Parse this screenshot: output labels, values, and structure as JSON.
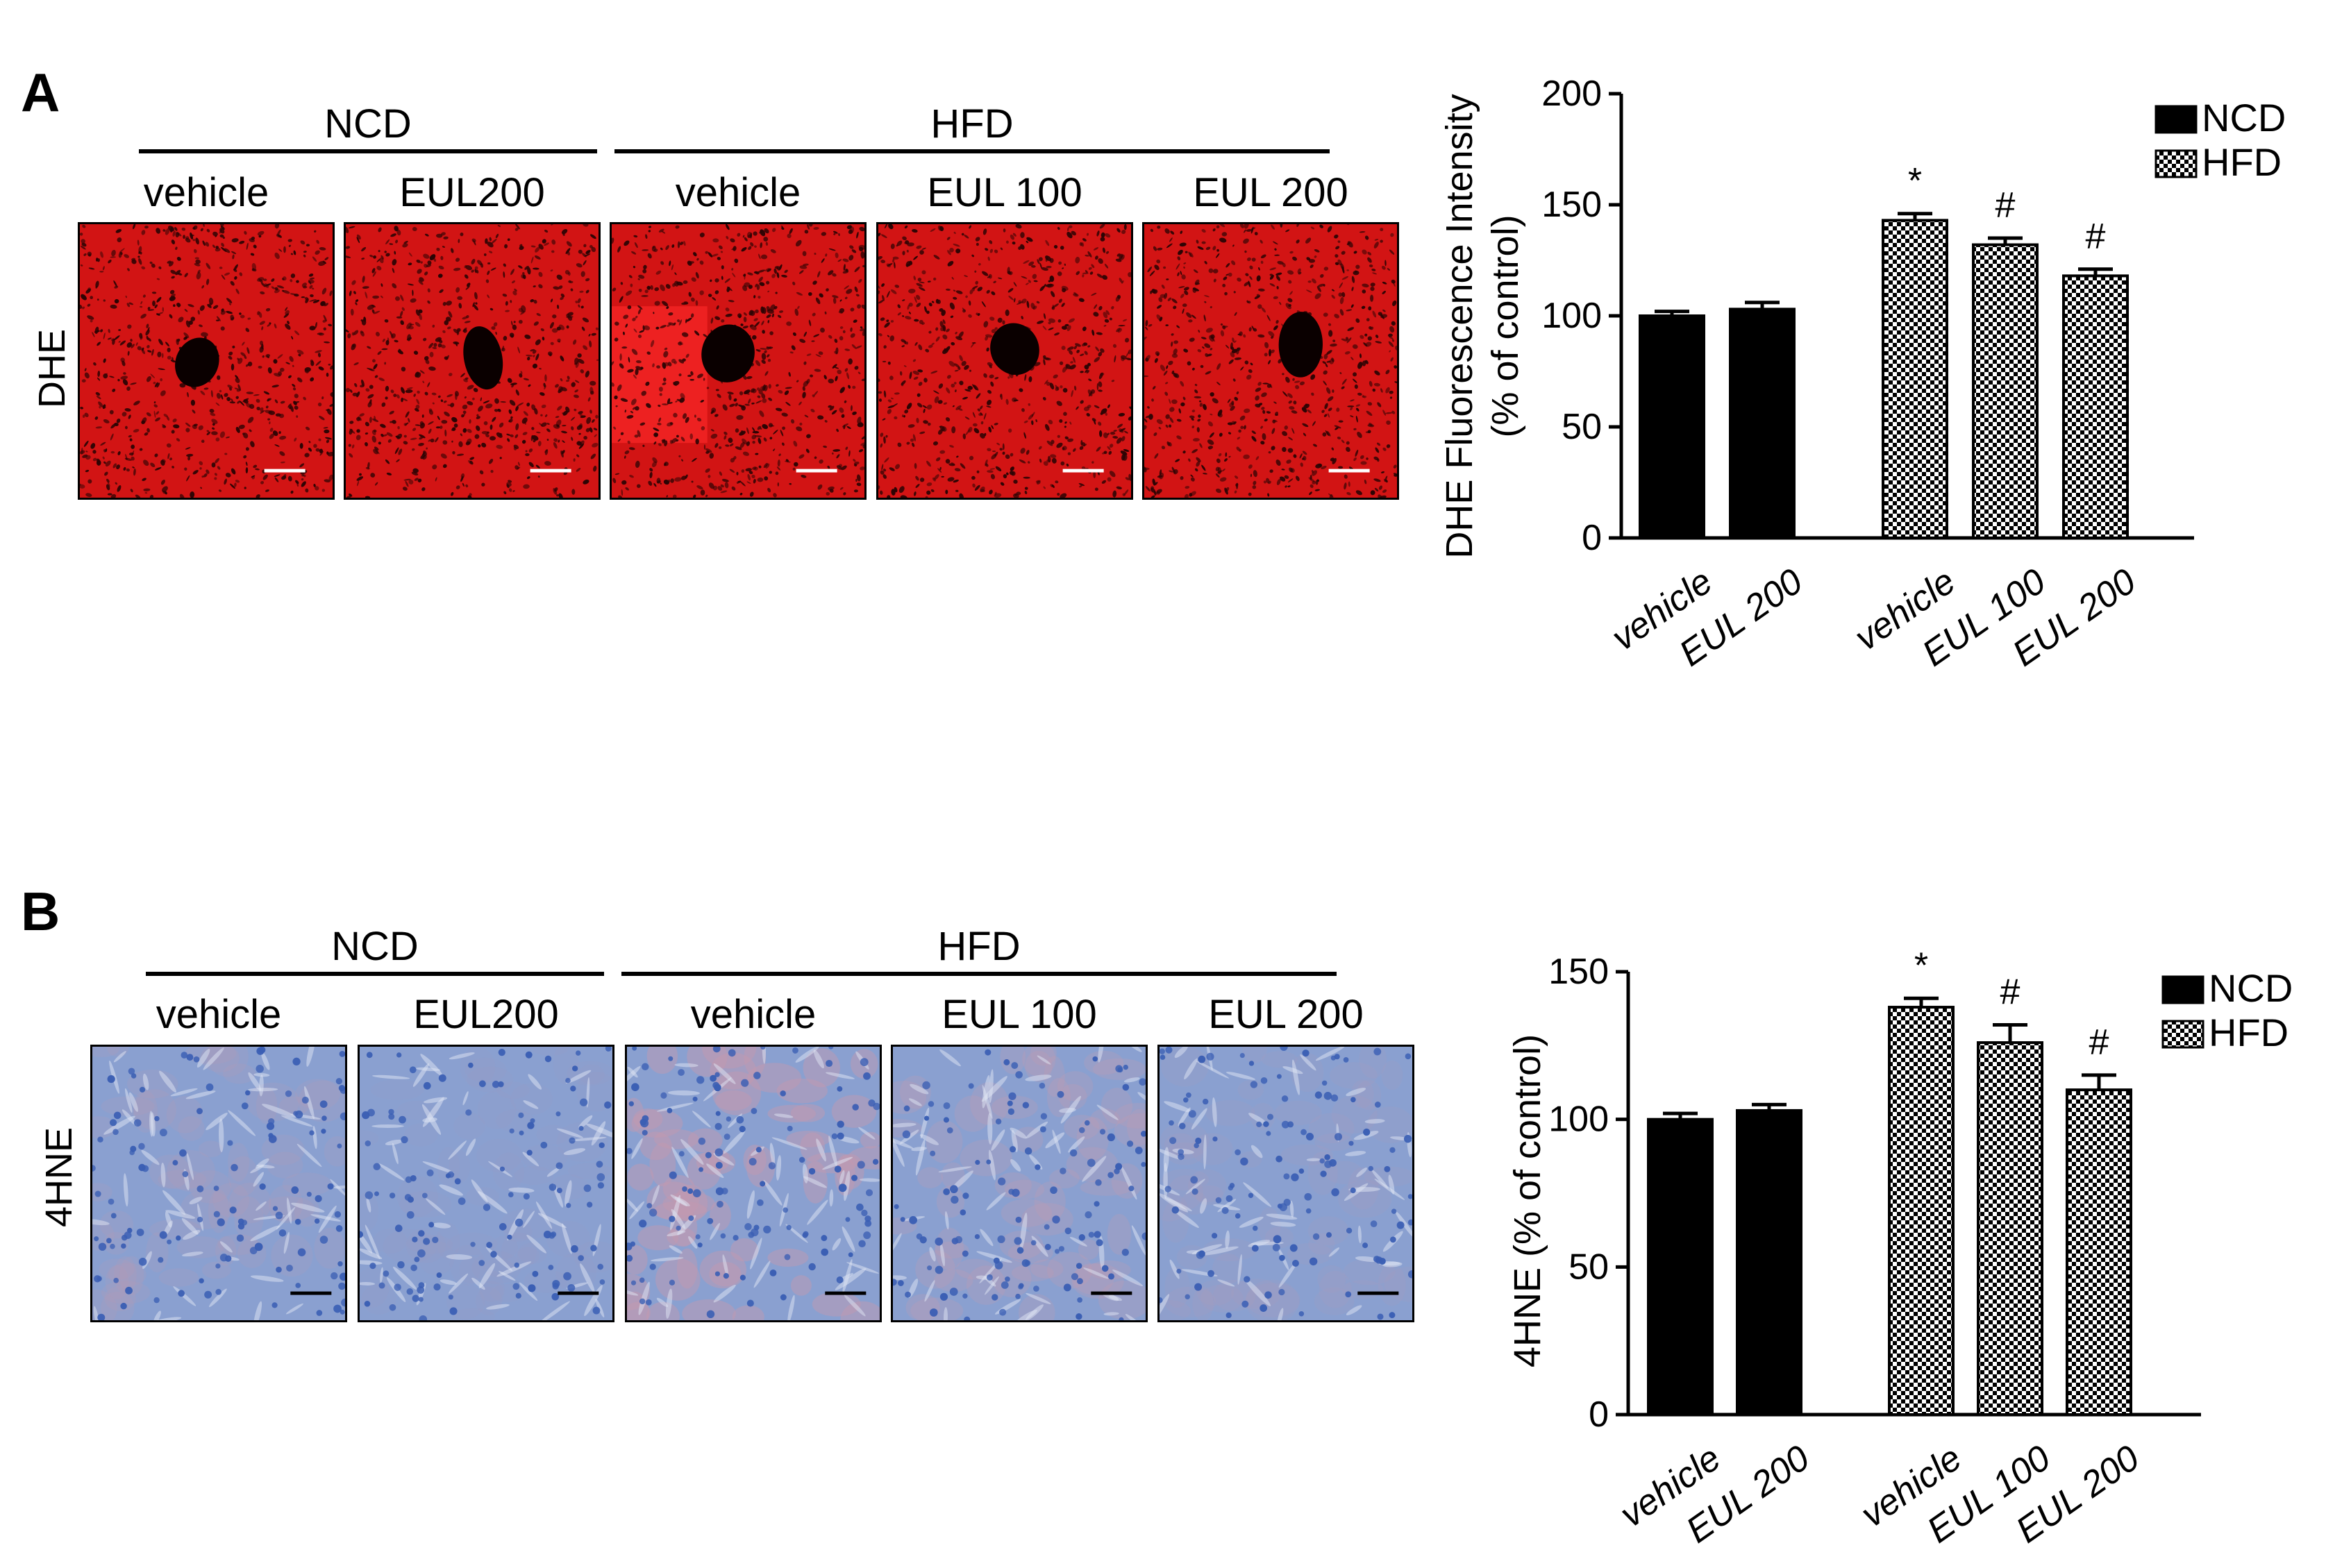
{
  "panels": [
    {
      "id": "A",
      "letter": "A",
      "row_label": "DHE",
      "groups": [
        "NCD",
        "HFD"
      ],
      "columns": [
        "vehicle",
        "EUL200",
        "vehicle",
        "EUL 100",
        "EUL 200"
      ],
      "stain_colors": {
        "base": "#d21414",
        "dark": "#2a0404",
        "bright": "#ff2a2a"
      },
      "scale_bar_color": "#ffffff"
    },
    {
      "id": "B",
      "letter": "B",
      "row_label": "4HNE",
      "groups": [
        "NCD",
        "HFD"
      ],
      "columns": [
        "vehicle",
        "EUL200",
        "vehicle",
        "EUL 100",
        "EUL 200"
      ],
      "stain_colors": {
        "base": "#8aa0d0",
        "dark": "#3b5fb4",
        "pink": "#c49ab0"
      },
      "scale_bar_color": "#000000"
    }
  ],
  "chart_data": [
    {
      "type": "bar",
      "ylabel_line1": "DHE Fluorescence Intensity",
      "ylabel_line2": "(% of control)",
      "ylim": [
        0,
        200
      ],
      "yticks": [
        0,
        50,
        100,
        150,
        200
      ],
      "categories": [
        "vehicle",
        "EUL 200",
        "vehicle",
        "EUL 100",
        "EUL 200"
      ],
      "values": [
        100,
        103,
        143,
        132,
        118
      ],
      "errors": [
        2,
        3,
        3,
        3,
        3
      ],
      "bar_groups": [
        "NCD",
        "NCD",
        "HFD",
        "HFD",
        "HFD"
      ],
      "significance": [
        "",
        "",
        "*",
        "#",
        "#"
      ],
      "legend": [
        "NCD",
        "HFD"
      ],
      "legend_position": "top-right"
    },
    {
      "type": "bar",
      "ylabel_line1": "4HNE (% of control)",
      "ylabel_line2": "",
      "ylim": [
        0,
        150
      ],
      "yticks": [
        0,
        50,
        100,
        150
      ],
      "categories": [
        "vehicle",
        "EUL 200",
        "vehicle",
        "EUL 100",
        "EUL 200"
      ],
      "values": [
        100,
        103,
        138,
        126,
        110
      ],
      "errors": [
        2,
        2,
        3,
        6,
        5
      ],
      "bar_groups": [
        "NCD",
        "NCD",
        "HFD",
        "HFD",
        "HFD"
      ],
      "significance": [
        "",
        "",
        "*",
        "#",
        "#"
      ],
      "legend": [
        "NCD",
        "HFD"
      ],
      "legend_position": "top-right"
    }
  ]
}
